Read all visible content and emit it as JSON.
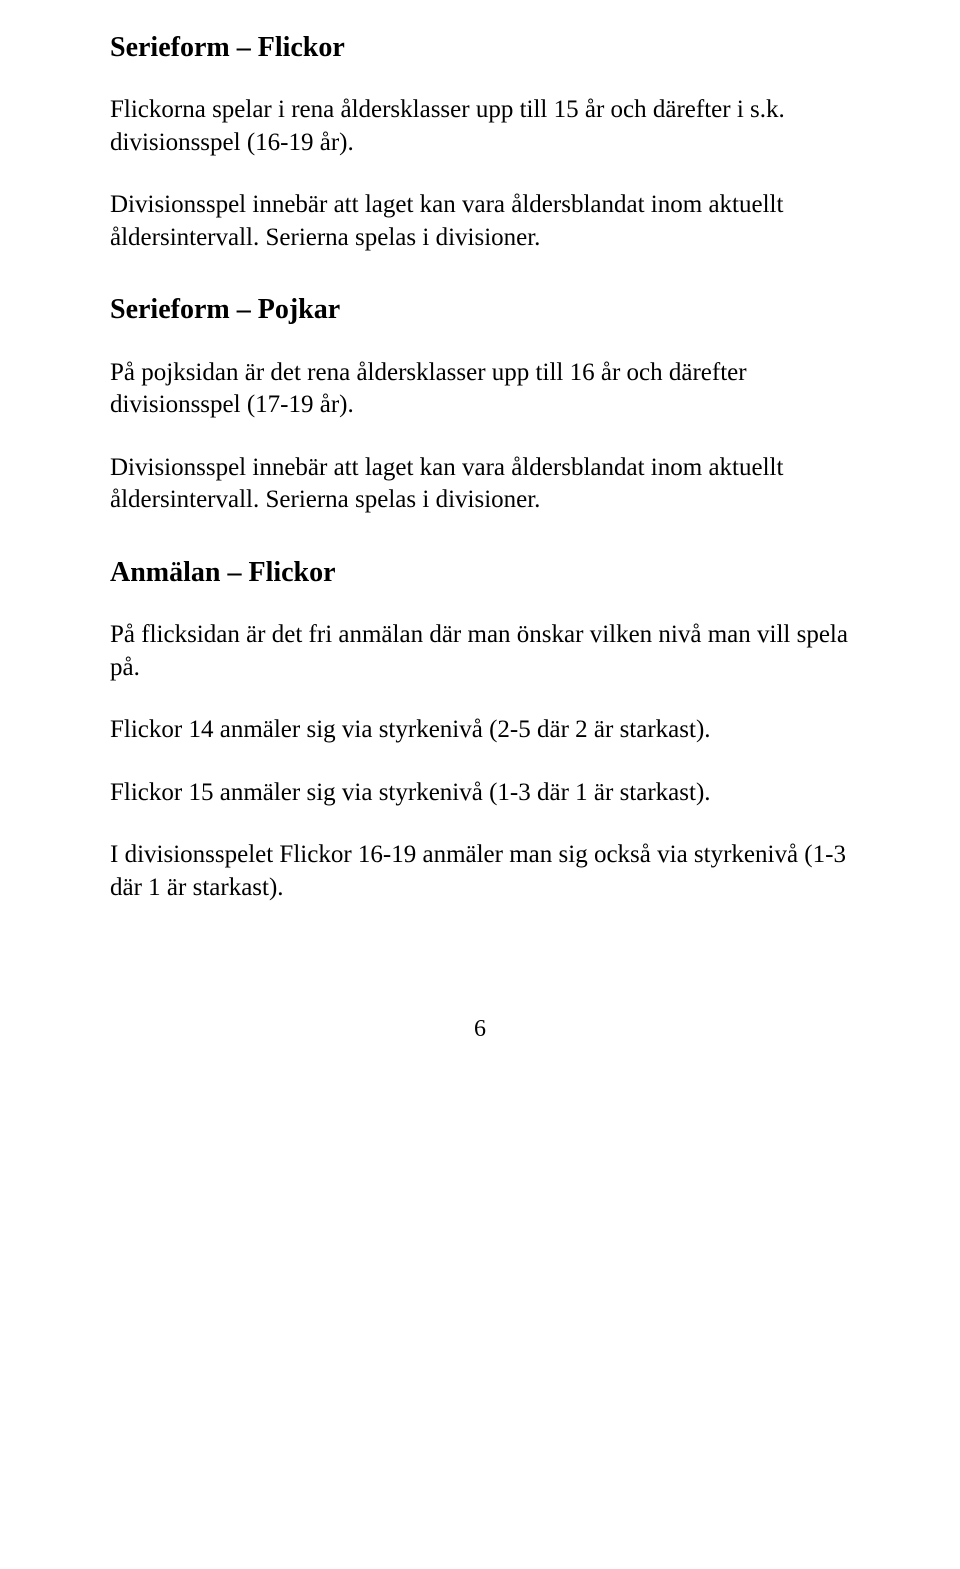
{
  "sections": {
    "serieform_flickor": {
      "heading": "Serieform – Flickor",
      "p1": "Flickorna spelar i rena åldersklasser upp till 15 år och därefter i s.k. divisionsspel (16-19 år).",
      "p2": "Divisionsspel innebär att laget kan vara åldersblandat inom aktuellt åldersintervall. Serierna spelas i divisioner."
    },
    "serieform_pojkar": {
      "heading": "Serieform – Pojkar",
      "p1": "På pojksidan är det rena åldersklasser upp till 16 år och därefter divisionsspel (17-19 år).",
      "p2": "Divisionsspel innebär att laget kan vara åldersblandat inom aktuellt åldersintervall. Serierna spelas i divisioner."
    },
    "anmalan_flickor": {
      "heading": "Anmälan – Flickor",
      "p1": "På flicksidan är det fri anmälan där man önskar vilken nivå man vill spela på.",
      "p2": "Flickor 14 anmäler sig via styrkenivå (2-5 där 2 är starkast).",
      "p3": "Flickor 15 anmäler sig via styrkenivå (1-3 där 1 är starkast).",
      "p4": "I divisionsspelet Flickor 16-19 anmäler man sig också via styrkenivå (1-3 där 1 är starkast)."
    }
  },
  "page_number": "6"
}
